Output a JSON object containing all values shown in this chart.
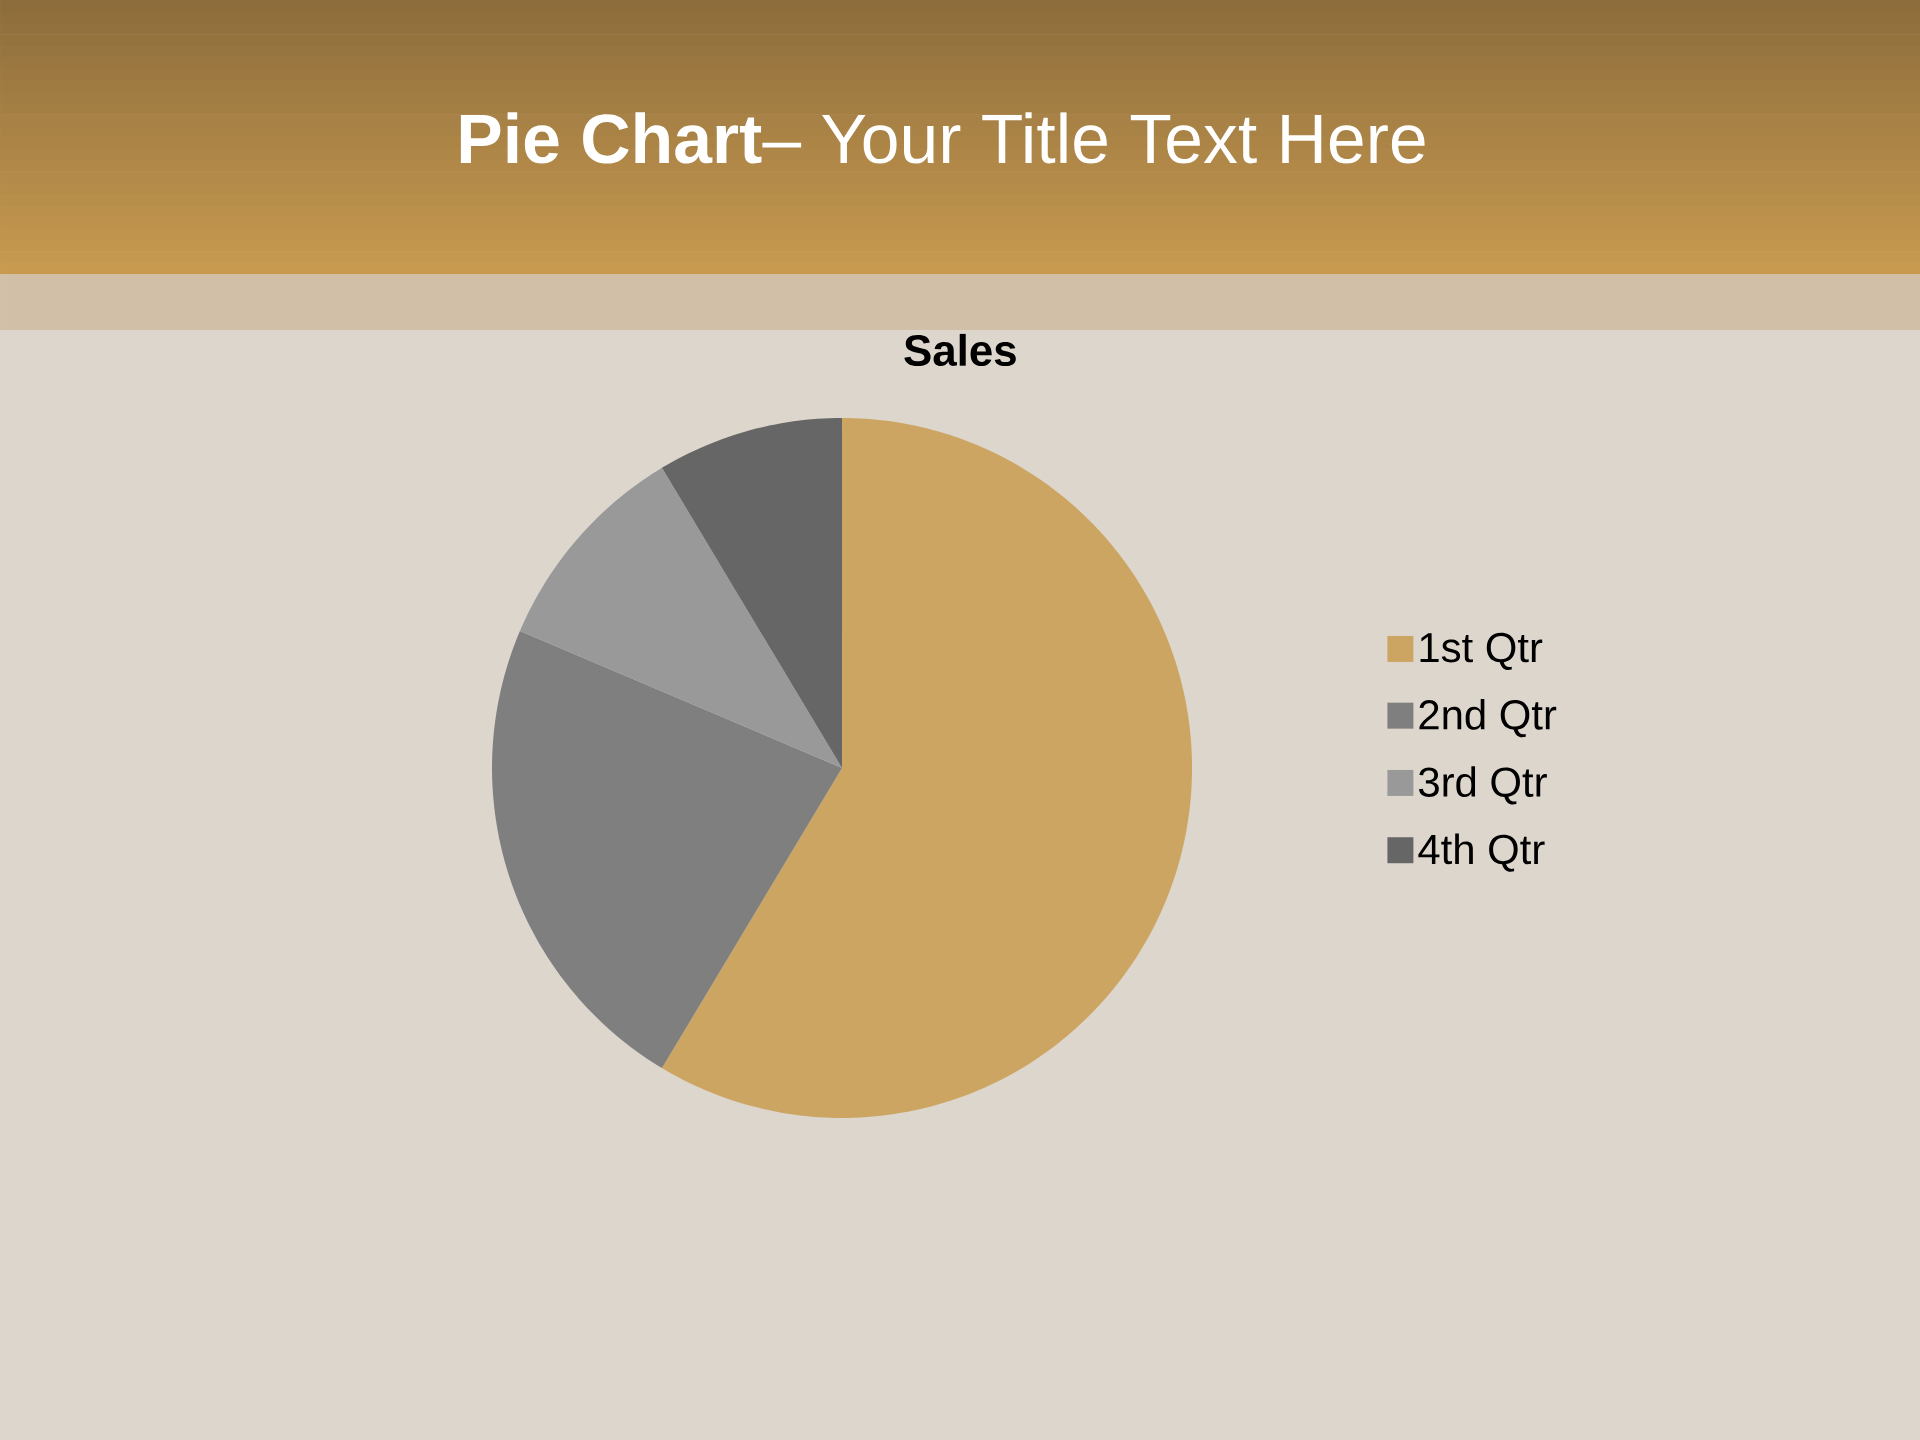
{
  "chart_data": {
    "type": "pie",
    "title": "**Pie Chart**– Your Title Text Here",
    "subtitle": "Sales",
    "categories": [
      "1st Qtr",
      "2nd Qtr",
      "3rd Qtr",
      "4th Qtr"
    ],
    "values": [
      58.6,
      22.8,
      10.0,
      8.6
    ],
    "colors": [
      "#cda562",
      "#7f7f7f",
      "#999999",
      "#666666"
    ],
    "legend": "right"
  }
}
